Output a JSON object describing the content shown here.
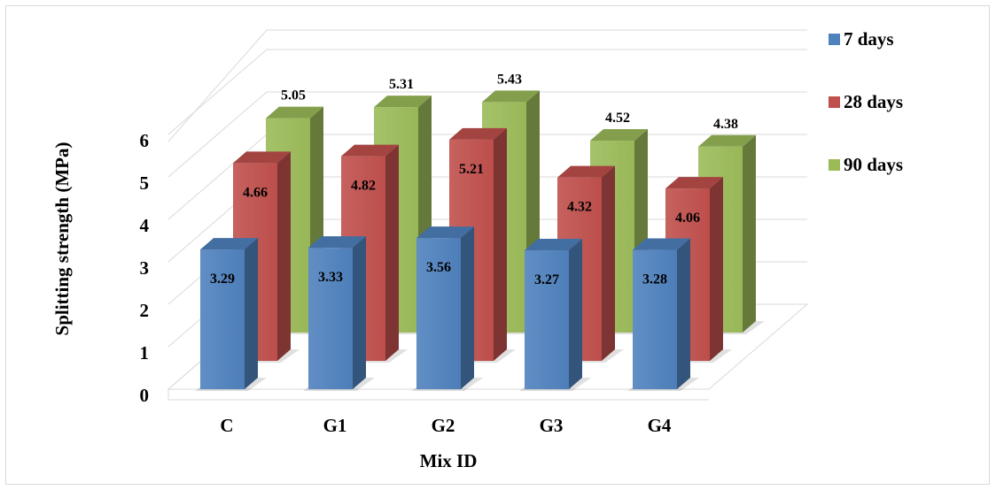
{
  "chart_data": {
    "type": "bar",
    "variant": "3d-clustered-depth",
    "categories": [
      "C",
      "G1",
      "G2",
      "G3",
      "G4"
    ],
    "series": [
      {
        "name": "7 days",
        "values": [
          3.29,
          3.33,
          3.56,
          3.27,
          3.28
        ],
        "color": "#4f81bd"
      },
      {
        "name": "28 days",
        "values": [
          4.66,
          4.82,
          5.21,
          4.32,
          4.06
        ],
        "color": "#c0504d"
      },
      {
        "name": "90 days",
        "values": [
          5.05,
          5.31,
          5.43,
          4.52,
          4.38
        ],
        "color": "#9bbb59"
      }
    ],
    "title": "",
    "xlabel": "Mix ID",
    "ylabel": "Splitting strength (MPa)",
    "ylim": [
      0,
      6
    ],
    "yticks": [
      0,
      1,
      2,
      3,
      4,
      5,
      6
    ],
    "grid": true,
    "legend": "right"
  }
}
